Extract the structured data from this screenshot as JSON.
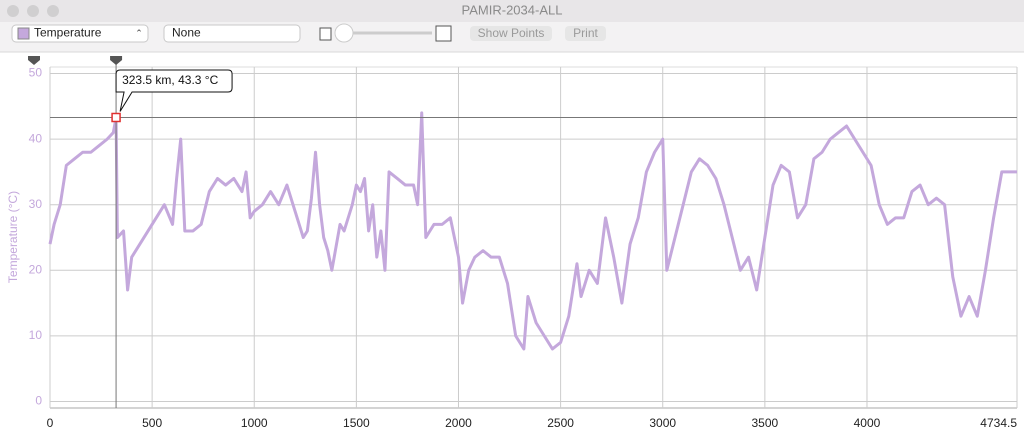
{
  "window": {
    "title": "PAMIR-2034-ALL"
  },
  "toolbar": {
    "second_select": "None",
    "buttons": [
      "Show Points",
      "Print"
    ]
  },
  "chart_data": {
    "type": "line",
    "y_label": "Temperature (°C)",
    "x": [
      0,
      20,
      50,
      80,
      120,
      160,
      200,
      240,
      280,
      310,
      323.5,
      330,
      360,
      380,
      400,
      440,
      480,
      520,
      560,
      600,
      620,
      640,
      660,
      700,
      740,
      780,
      820,
      860,
      900,
      940,
      960,
      980,
      1000,
      1040,
      1080,
      1120,
      1160,
      1200,
      1240,
      1260,
      1280,
      1300,
      1320,
      1340,
      1360,
      1380,
      1420,
      1440,
      1480,
      1500,
      1520,
      1540,
      1560,
      1580,
      1600,
      1620,
      1640,
      1660,
      1700,
      1740,
      1780,
      1800,
      1820,
      1840,
      1880,
      1920,
      1960,
      2000,
      2020,
      2050,
      2080,
      2120,
      2160,
      2200,
      2240,
      2280,
      2320,
      2340,
      2380,
      2420,
      2460,
      2500,
      2540,
      2580,
      2600,
      2640,
      2680,
      2720,
      2760,
      2800,
      2840,
      2880,
      2920,
      2960,
      3000,
      3020,
      3060,
      3100,
      3140,
      3180,
      3220,
      3260,
      3300,
      3340,
      3380,
      3420,
      3460,
      3500,
      3540,
      3580,
      3620,
      3660,
      3700,
      3740,
      3780,
      3820,
      3860,
      3900,
      3940,
      3980,
      4020,
      4060,
      4100,
      4140,
      4180,
      4220,
      4260,
      4300,
      4340,
      4380,
      4420,
      4460,
      4500,
      4540,
      4580,
      4620,
      4660,
      4700,
      4734.5
    ],
    "series": [
      {
        "name": "Temperature",
        "color": "#c4a8dc",
        "values": [
          24,
          27,
          30,
          36,
          37,
          38,
          38,
          39,
          40,
          41,
          43.3,
          25,
          26,
          17,
          22,
          24,
          26,
          28,
          30,
          27,
          34,
          40,
          26,
          26,
          27,
          32,
          34,
          33,
          34,
          32,
          35,
          28,
          29,
          30,
          32,
          30,
          33,
          29,
          25,
          26,
          31,
          38,
          30,
          25,
          23,
          20,
          27,
          26,
          30,
          33,
          32,
          34,
          26,
          30,
          22,
          26,
          20,
          35,
          34,
          33,
          33,
          30,
          44,
          25,
          27,
          27,
          28,
          22,
          15,
          20,
          22,
          23,
          22,
          22,
          18,
          10,
          8,
          16,
          12,
          10,
          8,
          9,
          13,
          21,
          16,
          20,
          18,
          28,
          22,
          15,
          24,
          28,
          35,
          38,
          40,
          20,
          25,
          30,
          35,
          37,
          36,
          34,
          30,
          25,
          20,
          22,
          17,
          25,
          33,
          36,
          35,
          28,
          30,
          37,
          38,
          40,
          41,
          42,
          40,
          38,
          36,
          30,
          27,
          28,
          28,
          32,
          33,
          30,
          31,
          30,
          19,
          13,
          16,
          13,
          20,
          28,
          35,
          35,
          35
        ]
      }
    ],
    "xlim": [
      0,
      4734.5
    ],
    "xticks": [
      0,
      500,
      1000,
      1500,
      2000,
      2500,
      3000,
      3500,
      4000,
      4734.5
    ],
    "ylim": [
      -1,
      51
    ],
    "yticks": [
      0,
      10,
      20,
      30,
      40,
      50
    ],
    "grid": true,
    "annotation": {
      "label": "323.5 km, 43.3 °C",
      "x": 323.5,
      "y": 43.3
    }
  }
}
